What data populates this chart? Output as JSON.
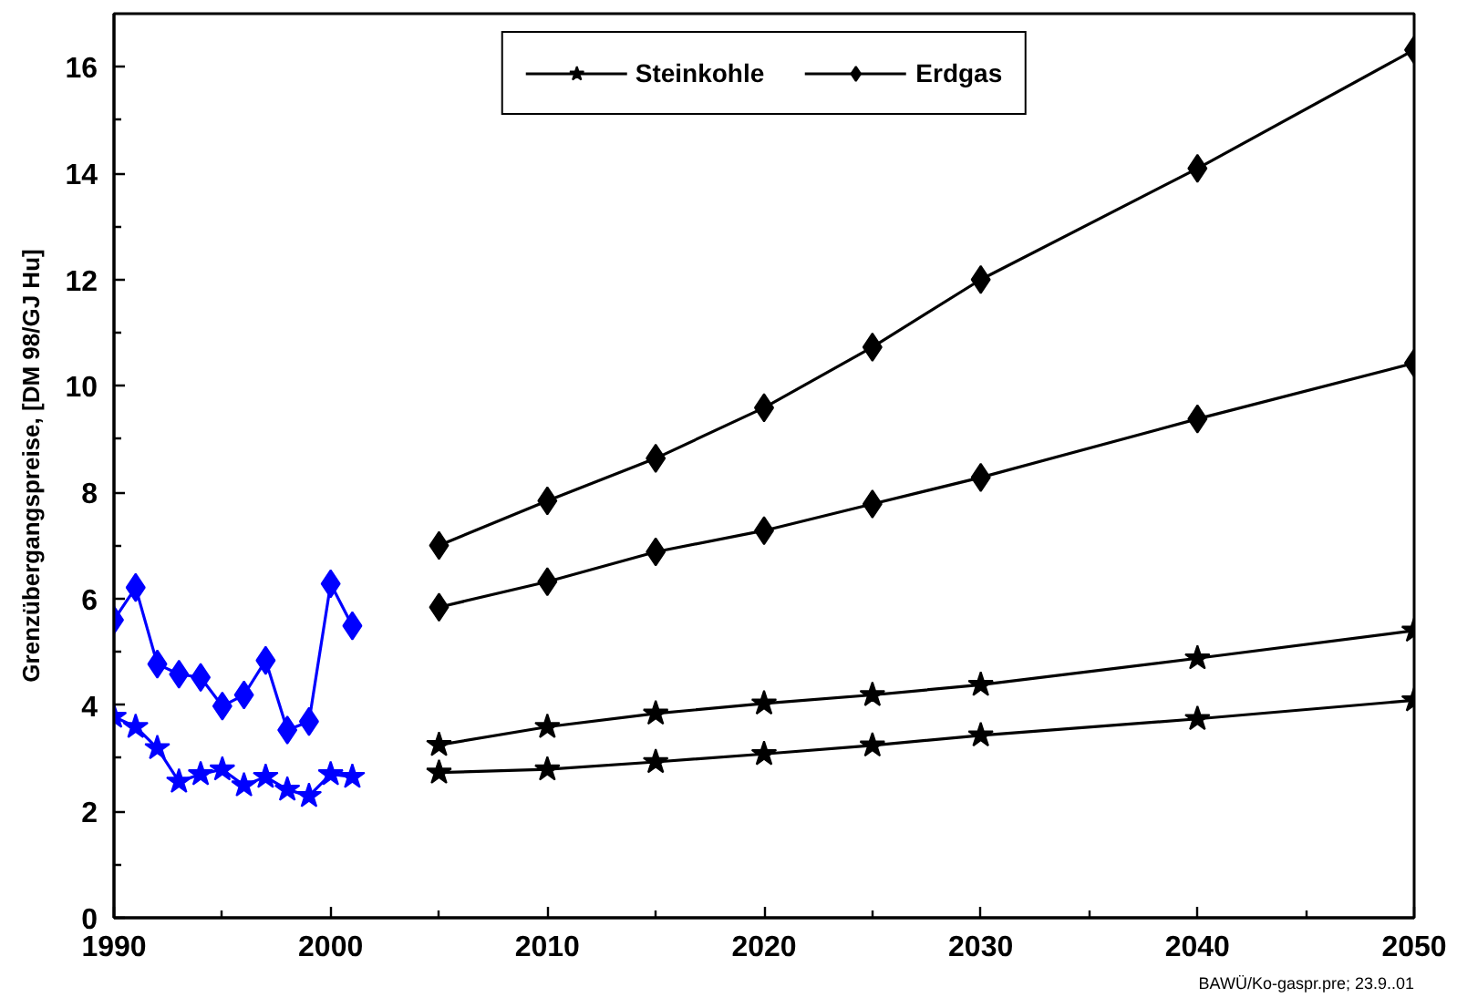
{
  "chart_data": {
    "type": "line",
    "ylabel": "Grenzübergangspreise, [DM 98/GJ Hu]",
    "annotations": [
      "BAWÜ/Ko-gaspr.pre; 23.9..01"
    ],
    "xlim": [
      1990,
      2050
    ],
    "ylim": [
      0,
      17
    ],
    "xticks": [
      1990,
      {
        "value": 1995,
        "label": null
      },
      2000,
      {
        "value": 2005,
        "label": null
      },
      2010,
      {
        "value": 2015,
        "label": null
      },
      2020,
      {
        "value": 2025,
        "label": null
      },
      2030,
      {
        "value": 2035,
        "label": null
      },
      2040,
      {
        "value": 2045,
        "label": null
      },
      2050
    ],
    "yticks": [
      0,
      {
        "value": 1,
        "label": null
      },
      2,
      {
        "value": 3,
        "label": null
      },
      4,
      {
        "value": 5,
        "label": null
      },
      6,
      {
        "value": 7,
        "label": null
      },
      8,
      {
        "value": 9,
        "label": null
      },
      10,
      {
        "value": 11,
        "label": null
      },
      12,
      {
        "value": 13,
        "label": null
      },
      14,
      {
        "value": 15,
        "label": null
      },
      16
    ],
    "grid": false,
    "legend": "top",
    "series": [
      {
        "color": "#0000ff",
        "marker": "diamond",
        "x": [
          1990,
          1991,
          1992,
          1993,
          1994,
          1995,
          1996,
          1997,
          1998,
          1999,
          2000,
          2001
        ],
        "values": [
          5.6,
          6.21,
          4.77,
          4.58,
          4.52,
          3.98,
          4.19,
          4.84,
          3.53,
          3.69,
          6.28,
          5.49
        ]
      },
      {
        "color": "#0000ff",
        "marker": "star",
        "x": [
          1990,
          1991,
          1992,
          1993,
          1994,
          1995,
          1996,
          1997,
          1998,
          1999,
          2000,
          2001
        ],
        "values": [
          3.78,
          3.59,
          3.19,
          2.56,
          2.7,
          2.79,
          2.49,
          2.65,
          2.41,
          2.29,
          2.7,
          2.65
        ]
      },
      {
        "name": "Steinkohle",
        "color": "#000000",
        "marker": "star",
        "x": [
          2005,
          2010,
          2015,
          2020,
          2025,
          2030,
          2040,
          2050
        ],
        "values": [
          3.25,
          3.59,
          3.84,
          4.03,
          4.19,
          4.38,
          4.88,
          5.4
        ]
      },
      {
        "color": "#000000",
        "marker": "star",
        "x": [
          2005,
          2010,
          2015,
          2020,
          2025,
          2030,
          2040,
          2050
        ],
        "values": [
          2.73,
          2.79,
          2.93,
          3.08,
          3.24,
          3.43,
          3.74,
          4.09
        ]
      },
      {
        "name": "Erdgas",
        "color": "#000000",
        "marker": "diamond",
        "x": [
          2005,
          2010,
          2015,
          2020,
          2025,
          2030,
          2040,
          2050
        ],
        "values": [
          7.0,
          7.84,
          8.64,
          9.59,
          10.73,
          12.0,
          14.09,
          16.32
        ]
      },
      {
        "color": "#000000",
        "marker": "diamond",
        "x": [
          2005,
          2010,
          2015,
          2020,
          2025,
          2030,
          2040,
          2050
        ],
        "values": [
          5.84,
          6.32,
          6.88,
          7.28,
          7.78,
          8.28,
          9.38,
          10.43
        ]
      }
    ]
  }
}
